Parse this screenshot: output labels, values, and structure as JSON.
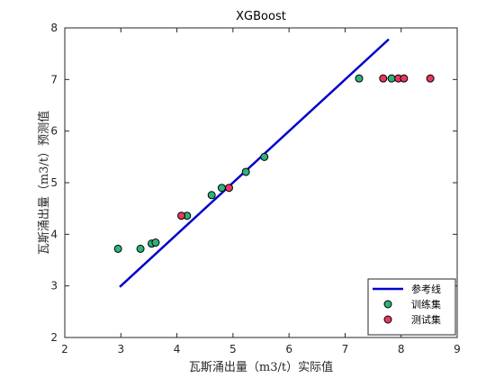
{
  "chart_data": {
    "type": "scatter",
    "title": "XGBoost",
    "xlabel": "瓦斯涌出量（m3/t）实际值",
    "ylabel": "瓦斯涌出量（m3/t）预测值",
    "xlim": [
      2,
      9
    ],
    "ylim": [
      2,
      8
    ],
    "xticks": [
      2,
      3,
      4,
      5,
      6,
      7,
      8,
      9
    ],
    "yticks": [
      2,
      3,
      4,
      5,
      6,
      7,
      8
    ],
    "grid": false,
    "legend_position": "bottom-right",
    "series": [
      {
        "name": "参考线",
        "kind": "line",
        "color": "#0000cc",
        "points": [
          [
            2.98,
            2.98
          ],
          [
            7.78,
            7.78
          ]
        ]
      },
      {
        "name": "训练集",
        "kind": "marker",
        "color": "#2db37a",
        "points": [
          [
            2.95,
            3.72
          ],
          [
            3.35,
            3.72
          ],
          [
            3.55,
            3.82
          ],
          [
            3.62,
            3.84
          ],
          [
            4.18,
            4.36
          ],
          [
            4.62,
            4.76
          ],
          [
            4.8,
            4.9
          ],
          [
            5.23,
            5.21
          ],
          [
            5.56,
            5.5
          ],
          [
            7.25,
            7.02
          ],
          [
            7.83,
            7.02
          ]
        ]
      },
      {
        "name": "测试集",
        "kind": "marker",
        "color": "#e8385f",
        "points": [
          [
            4.08,
            4.36
          ],
          [
            4.93,
            4.9
          ],
          [
            7.68,
            7.02
          ],
          [
            7.95,
            7.02
          ],
          [
            8.05,
            7.02
          ],
          [
            8.52,
            7.02
          ]
        ]
      }
    ]
  }
}
